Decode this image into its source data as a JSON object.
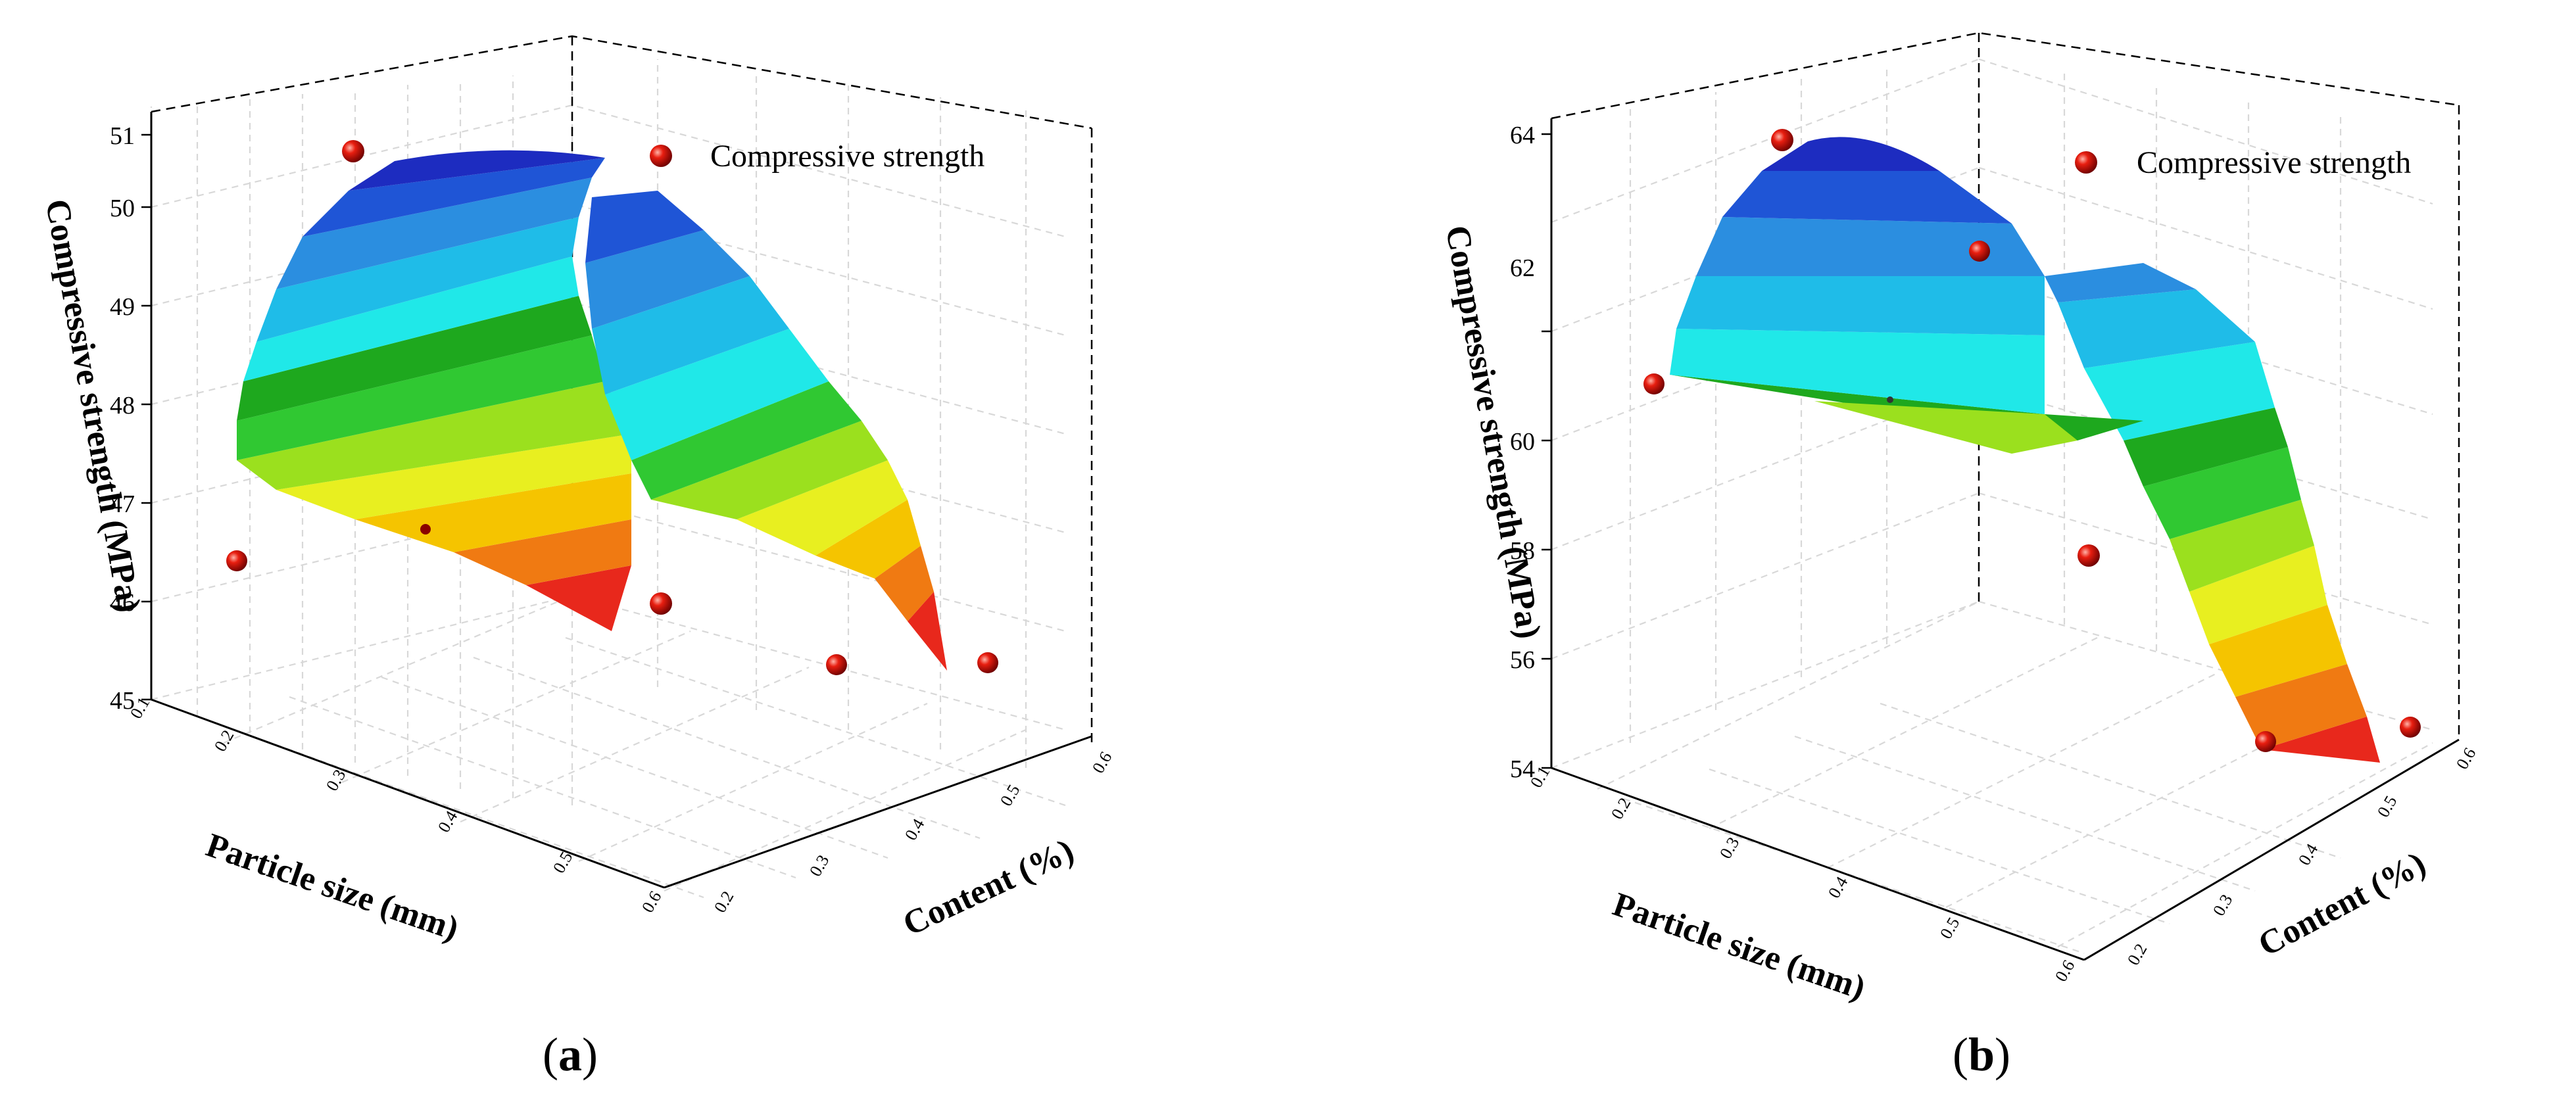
{
  "chart_data": [
    {
      "type": "surface3d",
      "panel_label": "a",
      "legend": "Compressive strength",
      "zlabel": "Compressive strength (MPa)",
      "xlabel": "Particle size (mm)",
      "ylabel": "Content (%)",
      "zlim": [
        45,
        51
      ],
      "z_ticks": [
        "45",
        "46",
        "47",
        "48",
        "49",
        "50",
        "51"
      ],
      "x_ticks": [
        "0.1",
        "0.2",
        "0.3",
        "0.4",
        "0.5",
        "0.6"
      ],
      "y_ticks": [
        "0.2",
        "0.3",
        "0.4",
        "0.5",
        "0.6"
      ],
      "points": [
        {
          "particle_size": 0.1,
          "content": 0.2,
          "strength": 47.0
        },
        {
          "particle_size": 0.1,
          "content": 0.4,
          "strength": 51.0
        },
        {
          "particle_size": 0.3,
          "content": 0.4,
          "strength": 47.5
        },
        {
          "particle_size": 0.4,
          "content": 0.6,
          "strength": 47.2
        },
        {
          "particle_size": 0.55,
          "content": 0.6,
          "strength": 46.3
        },
        {
          "particle_size": 0.6,
          "content": 0.6,
          "strength": 46.4
        }
      ]
    },
    {
      "type": "surface3d",
      "panel_label": "b",
      "legend": "Compressive strength",
      "zlabel": "Compressive strength (MPa)",
      "xlabel": "Particle size (mm)",
      "ylabel": "Content (%)",
      "zlim": [
        54,
        64
      ],
      "z_ticks": [
        "54",
        "56",
        "58",
        "60",
        "62",
        "64"
      ],
      "x_ticks": [
        "0.1",
        "0.2",
        "0.3",
        "0.4",
        "0.5",
        "0.6"
      ],
      "y_ticks": [
        "0.2",
        "0.3",
        "0.4",
        "0.5",
        "0.6"
      ],
      "points": [
        {
          "particle_size": 0.1,
          "content": 0.2,
          "strength": 60.3
        },
        {
          "particle_size": 0.1,
          "content": 0.4,
          "strength": 64.0
        },
        {
          "particle_size": 0.3,
          "content": 0.5,
          "strength": 62.5
        },
        {
          "particle_size": 0.3,
          "content": 0.3,
          "strength": 60.0
        },
        {
          "particle_size": 0.4,
          "content": 0.6,
          "strength": 58.0
        },
        {
          "particle_size": 0.55,
          "content": 0.6,
          "strength": 55.0
        },
        {
          "particle_size": 0.6,
          "content": 0.6,
          "strength": 55.2
        }
      ]
    }
  ]
}
